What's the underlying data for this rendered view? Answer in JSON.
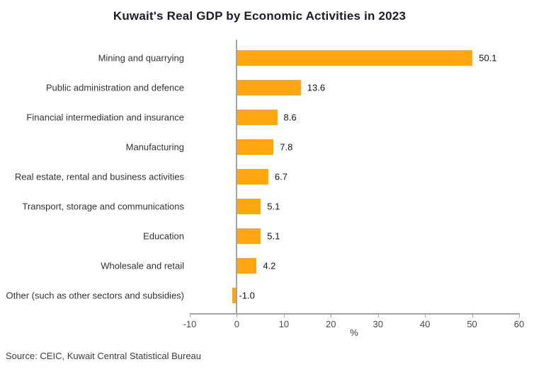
{
  "source": "Source: CEIC, Kuwait Central Statistical Bureau",
  "chart_data": {
    "type": "bar",
    "orientation": "horizontal",
    "title": "Kuwait's Real GDP by Economic Activities in 2023",
    "categories": [
      "Mining and quarrying",
      "Public administration and defence",
      "Financial intermediation and insurance",
      "Manufacturing",
      "Real estate, rental and business activities",
      "Transport, storage and communications",
      "Education",
      "Wholesale and retail",
      "Other (such as other sectors and subsidies)"
    ],
    "values": [
      50.1,
      13.6,
      8.6,
      7.8,
      6.7,
      5.1,
      5.1,
      4.2,
      -1.0
    ],
    "xlabel": "%",
    "xlim": [
      -10,
      60
    ],
    "xticks": [
      -10,
      0,
      10,
      20,
      30,
      40,
      50,
      60
    ],
    "grid": false,
    "legend_position": "none",
    "bar_color": "#FFA510",
    "axis_color": "#A3A3A3"
  }
}
